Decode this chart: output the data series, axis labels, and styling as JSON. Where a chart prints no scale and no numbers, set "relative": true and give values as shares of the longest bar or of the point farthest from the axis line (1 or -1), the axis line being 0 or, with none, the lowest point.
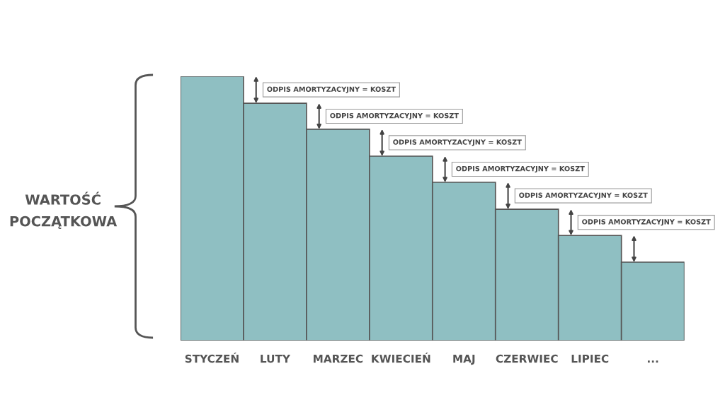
{
  "chart_data": {
    "type": "bar",
    "relative": true,
    "ylabel": "WARTOŚĆ\nPOCZĄTKOWA",
    "categories": [
      "STYCZEŃ",
      "LUTY",
      "MARZEC",
      "KWIECIEŃ",
      "MAJ",
      "CZERWIEC",
      "LIPIEC",
      "..."
    ],
    "values": [
      1,
      0.898,
      0.8,
      0.698,
      0.599,
      0.497,
      0.398,
      0.297
    ],
    "color": "#8fbfc2",
    "annotations": [
      "ODPIS AMORTYZACYJNY = KOSZT",
      "ODPIS AMORTYZACYJNY = KOSZT",
      "ODPIS AMORTYZACYJNY = KOSZT",
      "ODPIS AMORTYZACYJNY = KOSZT",
      "ODPIS AMORTYZACYJNY = KOSZT",
      "ODPIS AMORTYZACYJNY = KOSZT"
    ],
    "grid": false,
    "legend": false
  }
}
